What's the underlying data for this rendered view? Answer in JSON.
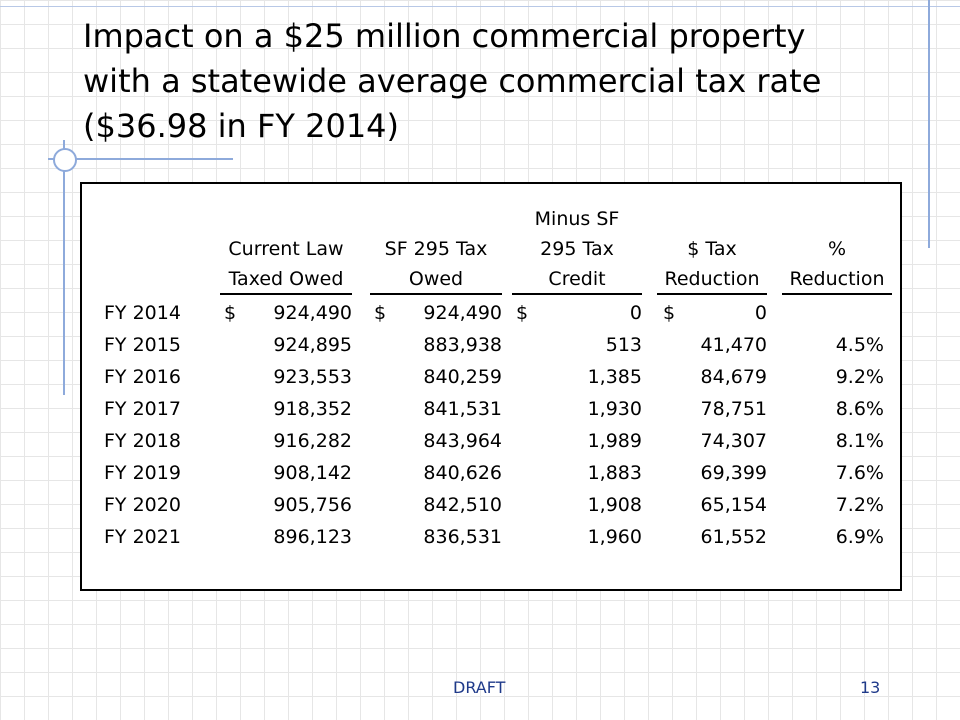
{
  "slide": {
    "title_lines": [
      "Impact on a $25 million commercial property",
      "with a statewide average commercial tax rate",
      "($36.98 in FY 2014)"
    ],
    "footer_label": "DRAFT",
    "page_number": "13"
  },
  "table": {
    "headers": [
      [
        "Current Law",
        "Taxed Owed"
      ],
      [
        "SF 295 Tax",
        "Owed"
      ],
      [
        "Minus SF",
        "295 Tax",
        "Credit"
      ],
      [
        "$ Tax",
        "Reduction"
      ],
      [
        "%",
        "Reduction"
      ]
    ],
    "currency_symbol": "$",
    "rows": [
      {
        "year": "FY 2014",
        "current": "924,490",
        "sf295": "924,490",
        "credit": "0",
        "reduction": "0",
        "pct": ""
      },
      {
        "year": "FY 2015",
        "current": "924,895",
        "sf295": "883,938",
        "credit": "513",
        "reduction": "41,470",
        "pct": "4.5%"
      },
      {
        "year": "FY 2016",
        "current": "923,553",
        "sf295": "840,259",
        "credit": "1,385",
        "reduction": "84,679",
        "pct": "9.2%"
      },
      {
        "year": "FY 2017",
        "current": "918,352",
        "sf295": "841,531",
        "credit": "1,930",
        "reduction": "78,751",
        "pct": "8.6%"
      },
      {
        "year": "FY 2018",
        "current": "916,282",
        "sf295": "843,964",
        "credit": "1,989",
        "reduction": "74,307",
        "pct": "8.1%"
      },
      {
        "year": "FY 2019",
        "current": "908,142",
        "sf295": "840,626",
        "credit": "1,883",
        "reduction": "69,399",
        "pct": "7.6%"
      },
      {
        "year": "FY 2020",
        "current": "905,756",
        "sf295": "842,510",
        "credit": "1,908",
        "reduction": "65,154",
        "pct": "7.2%"
      },
      {
        "year": "FY 2021",
        "current": "896,123",
        "sf295": "836,531",
        "credit": "1,960",
        "reduction": "61,552",
        "pct": "6.9%"
      }
    ]
  }
}
